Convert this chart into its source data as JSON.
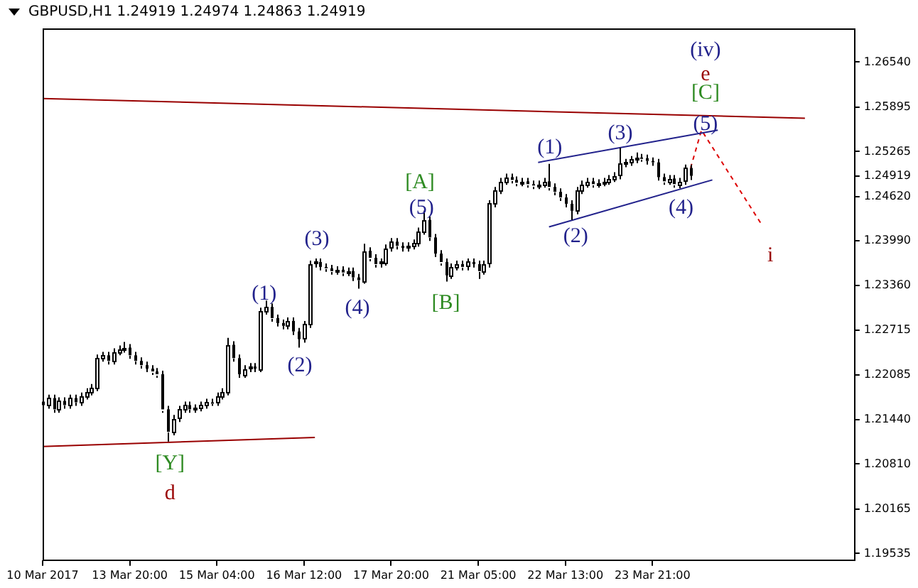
{
  "chart_data": {
    "type": "candlestick",
    "title": "GBPUSD,H1 1.24919 1.24974 1.24863 1.24919",
    "color": "#000000",
    "categories": [
      "10 Mar 2017",
      null,
      null,
      null,
      null,
      null,
      null,
      null,
      null,
      null,
      null,
      null,
      null,
      null,
      null,
      null,
      "13 Mar 20:00",
      null,
      null,
      null,
      null,
      null,
      null,
      null,
      null,
      null,
      null,
      null,
      null,
      null,
      null,
      null,
      "15 Mar 04:00",
      null,
      null,
      null,
      null,
      null,
      null,
      null,
      null,
      null,
      null,
      null,
      null,
      null,
      null,
      null,
      "16 Mar 12:00",
      null,
      null,
      null,
      null,
      null,
      null,
      null,
      null,
      null,
      null,
      null,
      null,
      null,
      null,
      null,
      "17 Mar 20:00",
      null,
      null,
      null,
      null,
      null,
      null,
      null,
      null,
      null,
      null,
      null,
      null,
      null,
      null,
      null,
      "21 Mar 05:00",
      null,
      null,
      null,
      null,
      null,
      null,
      null,
      null,
      null,
      null,
      null,
      null,
      null,
      null,
      null,
      "22 Mar 13:00",
      null,
      null,
      null,
      null,
      null,
      null,
      null,
      null,
      null,
      null,
      null,
      null,
      null,
      null,
      null,
      "23 Mar 21:00",
      null,
      null,
      null,
      null,
      null,
      null,
      null,
      null,
      null,
      null,
      null,
      null,
      null,
      null,
      null,
      null,
      null,
      null,
      null,
      null,
      null,
      null,
      null,
      null,
      null,
      null,
      null,
      null,
      null,
      null,
      null,
      null,
      null,
      null,
      null,
      null,
      null
    ],
    "ohlc": [
      [
        1.217,
        1.2175,
        1.216,
        1.2165
      ],
      [
        1.2165,
        1.218,
        1.216,
        1.2175
      ],
      [
        1.2175,
        1.218,
        1.2154,
        1.2159
      ],
      [
        1.2159,
        1.2176,
        1.2154,
        1.2171
      ],
      [
        1.2171,
        1.2176,
        1.216,
        1.2165
      ],
      [
        1.2165,
        1.218,
        1.216,
        1.2175
      ],
      [
        1.2175,
        1.218,
        1.2164,
        1.2169
      ],
      [
        1.2169,
        1.2183,
        1.2164,
        1.2178
      ],
      [
        1.2178,
        1.2189,
        1.2173,
        1.2184
      ],
      [
        1.2184,
        1.2195,
        1.2179,
        1.219
      ],
      [
        1.219,
        1.2237,
        1.2185,
        1.2232
      ],
      [
        1.2232,
        1.2241,
        1.2227,
        1.2236
      ],
      [
        1.2236,
        1.2241,
        1.2223,
        1.2228
      ],
      [
        1.2228,
        1.2246,
        1.2223,
        1.2241
      ],
      [
        1.2241,
        1.225,
        1.2236,
        1.2245
      ],
      [
        1.2245,
        1.2255,
        1.224,
        1.2247
      ],
      [
        1.2247,
        1.2252,
        1.2231,
        1.2236
      ],
      [
        1.2236,
        1.2241,
        1.2223,
        1.2228
      ],
      [
        1.2228,
        1.2233,
        1.2217,
        1.2222
      ],
      [
        1.2222,
        1.2227,
        1.2212,
        1.2217
      ],
      [
        1.2217,
        1.2222,
        1.2208,
        1.2213
      ],
      [
        1.2213,
        1.2218,
        1.2204,
        1.2209
      ],
      [
        1.2209,
        1.2214,
        1.2154,
        1.2159
      ],
      [
        1.2159,
        1.2164,
        1.2113,
        1.2127
      ],
      [
        1.2127,
        1.2151,
        1.2122,
        1.2146
      ],
      [
        1.2146,
        1.2164,
        1.2141,
        1.2159
      ],
      [
        1.2159,
        1.217,
        1.2154,
        1.2165
      ],
      [
        1.2165,
        1.217,
        1.2154,
        1.2159
      ],
      [
        1.2159,
        1.2166,
        1.2154,
        1.2161
      ],
      [
        1.2161,
        1.217,
        1.2156,
        1.2165
      ],
      [
        1.2165,
        1.2174,
        1.216,
        1.2169
      ],
      [
        1.2169,
        1.2174,
        1.2164,
        1.2169
      ],
      [
        1.2169,
        1.2183,
        1.2164,
        1.2178
      ],
      [
        1.2178,
        1.2189,
        1.2173,
        1.2184
      ],
      [
        1.2184,
        1.2261,
        1.2179,
        1.2251
      ],
      [
        1.2251,
        1.2256,
        1.2227,
        1.2232
      ],
      [
        1.2232,
        1.2237,
        1.2204,
        1.2209
      ],
      [
        1.2209,
        1.2222,
        1.2204,
        1.2217
      ],
      [
        1.2217,
        1.2225,
        1.2212,
        1.222
      ],
      [
        1.222,
        1.2225,
        1.2212,
        1.2217
      ],
      [
        1.2217,
        1.2304,
        1.2212,
        1.2299
      ],
      [
        1.2299,
        1.2314,
        1.2294,
        1.2305
      ],
      [
        1.2305,
        1.231,
        1.2284,
        1.2289
      ],
      [
        1.2289,
        1.2294,
        1.2277,
        1.2282
      ],
      [
        1.2282,
        1.2287,
        1.2273,
        1.2278
      ],
      [
        1.2278,
        1.229,
        1.2273,
        1.2285
      ],
      [
        1.2285,
        1.229,
        1.2265,
        1.227
      ],
      [
        1.227,
        1.2275,
        1.2247,
        1.2259
      ],
      [
        1.2259,
        1.2285,
        1.2254,
        1.228
      ],
      [
        1.228,
        1.2371,
        1.2275,
        1.2366
      ],
      [
        1.2366,
        1.2374,
        1.2361,
        1.2369
      ],
      [
        1.2369,
        1.2374,
        1.2357,
        1.2362
      ],
      [
        1.2362,
        1.2367,
        1.2355,
        1.236
      ],
      [
        1.236,
        1.2365,
        1.2351,
        1.2356
      ],
      [
        1.2356,
        1.2363,
        1.2351,
        1.2358
      ],
      [
        1.2358,
        1.2363,
        1.2349,
        1.2354
      ],
      [
        1.2354,
        1.2361,
        1.2349,
        1.2356
      ],
      [
        1.2356,
        1.2361,
        1.2342,
        1.2347
      ],
      [
        1.2347,
        1.2352,
        1.2331,
        1.2343
      ],
      [
        1.2343,
        1.2395,
        1.2338,
        1.2385
      ],
      [
        1.2385,
        1.239,
        1.237,
        1.2375
      ],
      [
        1.2375,
        1.238,
        1.2361,
        1.2366
      ],
      [
        1.2366,
        1.2374,
        1.2361,
        1.2369
      ],
      [
        1.2369,
        1.2394,
        1.2364,
        1.2389
      ],
      [
        1.2389,
        1.2403,
        1.2384,
        1.2398
      ],
      [
        1.2398,
        1.2403,
        1.2387,
        1.2392
      ],
      [
        1.2392,
        1.2397,
        1.2384,
        1.2389
      ],
      [
        1.2389,
        1.2397,
        1.2384,
        1.2392
      ],
      [
        1.2392,
        1.2401,
        1.2387,
        1.2396
      ],
      [
        1.2396,
        1.2418,
        1.2391,
        1.2413
      ],
      [
        1.2413,
        1.2442,
        1.2408,
        1.2429
      ],
      [
        1.2429,
        1.2434,
        1.2399,
        1.2404
      ],
      [
        1.2404,
        1.2409,
        1.2376,
        1.2381
      ],
      [
        1.2381,
        1.2386,
        1.2364,
        1.2369
      ],
      [
        1.2369,
        1.2374,
        1.2341,
        1.235
      ],
      [
        1.235,
        1.2367,
        1.2345,
        1.2362
      ],
      [
        1.2362,
        1.2371,
        1.2357,
        1.2366
      ],
      [
        1.2366,
        1.2371,
        1.2357,
        1.2362
      ],
      [
        1.2362,
        1.2374,
        1.2357,
        1.2369
      ],
      [
        1.2369,
        1.2374,
        1.2361,
        1.2366
      ],
      [
        1.2366,
        1.2371,
        1.2345,
        1.2356
      ],
      [
        1.2356,
        1.2371,
        1.2351,
        1.2366
      ],
      [
        1.2366,
        1.2457,
        1.2361,
        1.2452
      ],
      [
        1.2452,
        1.2476,
        1.2447,
        1.2471
      ],
      [
        1.2471,
        1.2489,
        1.2466,
        1.2484
      ],
      [
        1.2484,
        1.2495,
        1.2479,
        1.249
      ],
      [
        1.249,
        1.2495,
        1.2481,
        1.2486
      ],
      [
        1.2486,
        1.2491,
        1.2477,
        1.2482
      ],
      [
        1.2482,
        1.2489,
        1.2477,
        1.2484
      ],
      [
        1.2484,
        1.2489,
        1.2475,
        1.248
      ],
      [
        1.248,
        1.2485,
        1.2473,
        1.2478
      ],
      [
        1.2478,
        1.2485,
        1.2473,
        1.248
      ],
      [
        1.248,
        1.2489,
        1.2475,
        1.2484
      ],
      [
        1.2484,
        1.2509,
        1.2471,
        1.2476
      ],
      [
        1.2476,
        1.2481,
        1.2464,
        1.2469
      ],
      [
        1.2469,
        1.2474,
        1.2456,
        1.2461
      ],
      [
        1.2461,
        1.2466,
        1.2447,
        1.2452
      ],
      [
        1.2452,
        1.2457,
        1.2429,
        1.2442
      ],
      [
        1.2442,
        1.2476,
        1.2437,
        1.2471
      ],
      [
        1.2471,
        1.2485,
        1.2466,
        1.248
      ],
      [
        1.248,
        1.2489,
        1.2475,
        1.2484
      ],
      [
        1.2484,
        1.2489,
        1.2475,
        1.248
      ],
      [
        1.248,
        1.2487,
        1.2475,
        1.2482
      ],
      [
        1.2482,
        1.2489,
        1.2477,
        1.2484
      ],
      [
        1.2484,
        1.2493,
        1.2479,
        1.2488
      ],
      [
        1.2488,
        1.2497,
        1.2483,
        1.2492
      ],
      [
        1.2492,
        1.2532,
        1.2487,
        1.2509
      ],
      [
        1.2509,
        1.2516,
        1.2504,
        1.2511
      ],
      [
        1.2511,
        1.252,
        1.2506,
        1.2515
      ],
      [
        1.2515,
        1.2525,
        1.251,
        1.2518
      ],
      [
        1.2518,
        1.2523,
        1.2512,
        1.2517
      ],
      [
        1.2517,
        1.2522,
        1.2508,
        1.2513
      ],
      [
        1.2513,
        1.2518,
        1.2506,
        1.2511
      ],
      [
        1.2511,
        1.2516,
        1.2485,
        1.249
      ],
      [
        1.249,
        1.2495,
        1.2479,
        1.2484
      ],
      [
        1.2484,
        1.2493,
        1.2479,
        1.2488
      ],
      [
        1.2488,
        1.2493,
        1.2475,
        1.248
      ],
      [
        1.248,
        1.2489,
        1.2474,
        1.2484
      ],
      [
        1.2484,
        1.2508,
        1.2479,
        1.2503
      ],
      [
        1.2503,
        1.2508,
        1.2486,
        1.24919
      ],
      null,
      null,
      null,
      null,
      null,
      null,
      null,
      null,
      null,
      null,
      null,
      null,
      null,
      null,
      null,
      null,
      null,
      null,
      null,
      null,
      null,
      null,
      null,
      null,
      null,
      null,
      null,
      null,
      null,
      null
    ],
    "series": [
      {
        "type": "line",
        "color": "#990000",
        "values": [
          1.2602,
          null,
          null,
          null,
          null,
          null,
          null,
          null,
          null,
          null,
          null,
          null,
          null,
          null,
          null,
          null,
          null,
          null,
          null,
          null,
          null,
          null,
          null,
          null,
          null,
          null,
          null,
          null,
          null,
          null,
          null,
          null,
          null,
          null,
          null,
          null,
          null,
          null,
          null,
          null,
          null,
          null,
          null,
          null,
          null,
          null,
          null,
          null,
          null,
          null,
          null,
          null,
          null,
          null,
          null,
          null,
          null,
          null,
          null,
          null,
          null,
          null,
          null,
          null,
          null,
          null,
          null,
          null,
          null,
          null,
          null,
          null,
          null,
          null,
          null,
          null,
          null,
          null,
          null,
          null,
          null,
          null,
          null,
          null,
          null,
          null,
          null,
          null,
          null,
          null,
          null,
          null,
          null,
          null,
          null,
          null,
          null,
          null,
          null,
          null,
          null,
          null,
          null,
          null,
          null,
          null,
          null,
          null,
          null,
          null,
          null,
          null,
          null,
          null,
          null,
          null,
          null,
          null,
          null,
          null,
          null,
          null,
          null,
          null,
          null,
          null,
          null,
          null,
          null,
          null,
          null,
          null,
          null,
          null,
          null,
          null,
          null,
          null,
          null,
          null,
          1.2574,
          null,
          null,
          null,
          null,
          null,
          null,
          null,
          null,
          null
        ]
      },
      {
        "type": "line",
        "color": "#990000",
        "values": [
          1.2106,
          null,
          null,
          null,
          null,
          null,
          null,
          null,
          null,
          null,
          null,
          null,
          null,
          null,
          null,
          null,
          null,
          null,
          null,
          null,
          null,
          null,
          null,
          null,
          null,
          null,
          null,
          null,
          null,
          null,
          null,
          null,
          null,
          null,
          null,
          null,
          null,
          null,
          null,
          null,
          null,
          null,
          null,
          null,
          null,
          null,
          null,
          null,
          null,
          null,
          1.2119,
          null,
          null,
          null,
          null,
          null,
          null,
          null,
          null,
          null,
          null,
          null,
          null,
          null,
          null,
          null,
          null,
          null,
          null,
          null,
          null,
          null,
          null,
          null,
          null,
          null,
          null,
          null,
          null,
          null,
          null,
          null,
          null,
          null,
          null,
          null,
          null,
          null,
          null,
          null,
          null,
          null,
          null,
          null,
          null,
          null,
          null,
          null,
          null,
          null,
          null,
          null,
          null,
          null,
          null,
          null,
          null,
          null,
          null,
          null,
          null,
          null,
          null,
          null,
          null,
          null,
          null,
          null,
          null,
          null,
          null,
          null,
          null,
          null,
          null,
          null,
          null,
          null,
          null,
          null,
          null,
          null,
          null,
          null,
          null,
          null,
          null,
          null,
          null,
          null,
          null,
          null,
          null,
          null,
          null,
          null,
          null,
          null,
          null,
          null
        ]
      },
      {
        "type": "line",
        "color": "#22228c",
        "values": [
          null,
          null,
          null,
          null,
          null,
          null,
          null,
          null,
          null,
          null,
          null,
          null,
          null,
          null,
          null,
          null,
          null,
          null,
          null,
          null,
          null,
          null,
          null,
          null,
          null,
          null,
          null,
          null,
          null,
          null,
          null,
          null,
          null,
          null,
          null,
          null,
          null,
          null,
          null,
          null,
          null,
          null,
          null,
          null,
          null,
          null,
          null,
          null,
          null,
          null,
          null,
          null,
          null,
          null,
          null,
          null,
          null,
          null,
          null,
          null,
          null,
          null,
          null,
          null,
          null,
          null,
          null,
          null,
          null,
          null,
          null,
          null,
          null,
          null,
          null,
          null,
          null,
          null,
          null,
          null,
          null,
          null,
          null,
          null,
          null,
          null,
          null,
          null,
          null,
          null,
          null,
          1.2511,
          null,
          null,
          null,
          null,
          null,
          null,
          null,
          null,
          null,
          null,
          null,
          null,
          null,
          null,
          null,
          null,
          null,
          null,
          null,
          null,
          null,
          null,
          null,
          null,
          null,
          null,
          null,
          null,
          null,
          null,
          null,
          null,
          1.2557,
          null,
          null,
          null,
          null,
          null,
          null,
          null,
          null,
          null,
          null,
          null,
          null,
          null,
          null,
          null,
          null,
          null,
          null,
          null,
          null,
          null,
          null,
          null,
          null,
          null
        ]
      },
      {
        "type": "line",
        "color": "#22228c",
        "values": [
          null,
          null,
          null,
          null,
          null,
          null,
          null,
          null,
          null,
          null,
          null,
          null,
          null,
          null,
          null,
          null,
          null,
          null,
          null,
          null,
          null,
          null,
          null,
          null,
          null,
          null,
          null,
          null,
          null,
          null,
          null,
          null,
          null,
          null,
          null,
          null,
          null,
          null,
          null,
          null,
          null,
          null,
          null,
          null,
          null,
          null,
          null,
          null,
          null,
          null,
          null,
          null,
          null,
          null,
          null,
          null,
          null,
          null,
          null,
          null,
          null,
          null,
          null,
          null,
          null,
          null,
          null,
          null,
          null,
          null,
          null,
          null,
          null,
          null,
          null,
          null,
          null,
          null,
          null,
          null,
          null,
          null,
          null,
          null,
          null,
          null,
          null,
          null,
          null,
          null,
          null,
          null,
          null,
          1.2419,
          null,
          null,
          null,
          null,
          null,
          null,
          null,
          null,
          null,
          null,
          null,
          null,
          null,
          null,
          null,
          null,
          null,
          null,
          null,
          null,
          null,
          null,
          null,
          null,
          null,
          null,
          null,
          null,
          null,
          1.2486,
          null,
          null,
          null,
          null,
          null,
          null,
          null,
          null,
          null,
          null,
          null,
          null,
          null,
          null,
          null,
          null,
          null,
          null,
          null,
          null,
          null,
          null,
          null,
          null,
          null,
          null
        ]
      },
      {
        "type": "line",
        "color": "#dd0000",
        "line_style": "dashed",
        "values": [
          null,
          null,
          null,
          null,
          null,
          null,
          null,
          null,
          null,
          null,
          null,
          null,
          null,
          null,
          null,
          null,
          null,
          null,
          null,
          null,
          null,
          null,
          null,
          null,
          null,
          null,
          null,
          null,
          null,
          null,
          null,
          null,
          null,
          null,
          null,
          null,
          null,
          null,
          null,
          null,
          null,
          null,
          null,
          null,
          null,
          null,
          null,
          null,
          null,
          null,
          null,
          null,
          null,
          null,
          null,
          null,
          null,
          null,
          null,
          null,
          null,
          null,
          null,
          null,
          null,
          null,
          null,
          null,
          null,
          null,
          null,
          null,
          null,
          null,
          null,
          null,
          null,
          null,
          null,
          null,
          null,
          null,
          null,
          null,
          null,
          null,
          null,
          null,
          null,
          null,
          null,
          null,
          null,
          null,
          null,
          null,
          null,
          null,
          null,
          null,
          null,
          null,
          null,
          null,
          null,
          null,
          null,
          null,
          null,
          null,
          null,
          null,
          null,
          null,
          null,
          null,
          null,
          null,
          null,
          1.2503,
          null,
          1.2557,
          null,
          null,
          null,
          null,
          null,
          null,
          null,
          null,
          null,
          null,
          1.2423,
          null,
          null,
          null,
          null,
          null,
          null,
          null,
          null,
          null,
          null,
          null,
          null,
          null,
          null,
          null,
          null,
          null
        ]
      }
    ],
    "ylim": [
      1.1944,
      1.2702
    ],
    "yticks": [
      {
        "value": 1.2654,
        "label": "1.26540"
      },
      {
        "value": 1.25895,
        "label": "1.25895"
      },
      {
        "value": 1.25265,
        "label": "1.25265"
      },
      1.24919,
      {
        "value": 1.2462,
        "label": "1.24620"
      },
      {
        "value": 1.2399,
        "label": "1.23990"
      },
      {
        "value": 1.2336,
        "label": "1.23360"
      },
      {
        "value": 1.22715,
        "label": "1.22715"
      },
      {
        "value": 1.22085,
        "label": "1.22085"
      },
      {
        "value": 1.2144,
        "label": "1.21440"
      },
      {
        "value": 1.2081,
        "label": "1.20810"
      },
      {
        "value": 1.20165,
        "label": "1.20165"
      },
      {
        "value": 1.19535,
        "label": "1.19535"
      }
    ],
    "annotations": [
      "(iv)",
      "e",
      "[C]",
      "(5)",
      "(3)",
      "(1)",
      "(2)",
      "(4)",
      "[A]",
      "(5)",
      "[B]",
      "(3)",
      "(4)",
      "(1)",
      "(2)",
      "[Y]",
      "d",
      "i"
    ]
  }
}
